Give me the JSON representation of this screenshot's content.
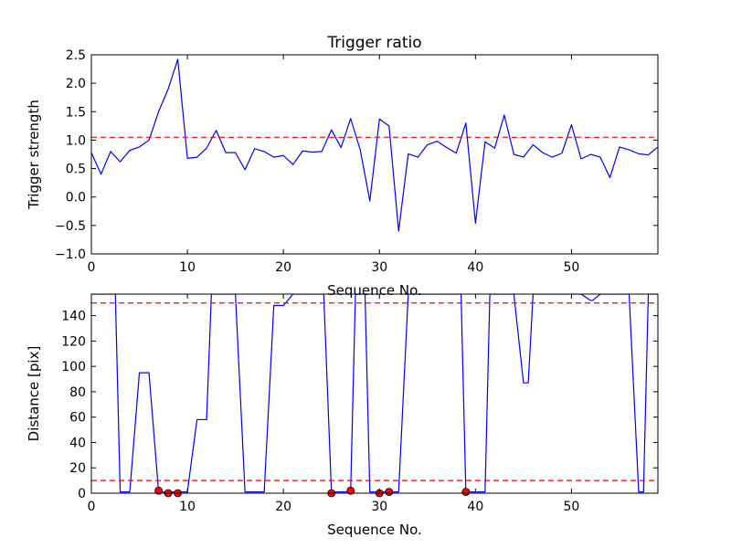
{
  "colors": {
    "series": "#0000ff",
    "threshold": "#ff0000",
    "marker_fill": "#ff0000",
    "marker_edge": "#000000",
    "axes": "#000000",
    "background": "#ffffff"
  },
  "chart_data": [
    {
      "type": "line",
      "title": "Trigger ratio",
      "xlabel": "Sequence No.",
      "ylabel": "Trigger strength",
      "xlim": [
        0,
        59
      ],
      "ylim": [
        -1.0,
        2.5
      ],
      "xticks": [
        0,
        10,
        20,
        30,
        40,
        50
      ],
      "yticks": [
        -1.0,
        -0.5,
        0.0,
        0.5,
        1.0,
        1.5,
        2.0,
        2.5
      ],
      "x_tick_labels": [
        "0",
        "10",
        "20",
        "30",
        "40",
        "50"
      ],
      "y_tick_labels": [
        "−1.0",
        "−0.5",
        "0.0",
        "0.5",
        "1.0",
        "1.5",
        "2.0",
        "2.5"
      ],
      "grid": false,
      "series": [
        {
          "values": [
            0.78,
            0.4,
            0.8,
            0.62,
            0.82,
            0.88,
            1.0,
            1.5,
            1.9,
            2.42,
            0.68,
            0.7,
            0.86,
            1.17,
            0.78,
            0.78,
            0.48,
            0.85,
            0.8,
            0.7,
            0.73,
            0.57,
            0.81,
            0.79,
            0.8,
            1.18,
            0.87,
            1.38,
            0.83,
            -0.07,
            1.37,
            1.25,
            -0.6,
            0.76,
            0.7,
            0.92,
            0.98,
            0.87,
            0.77,
            1.3,
            -0.46,
            0.97,
            0.86,
            1.44,
            0.75,
            0.7,
            0.92,
            0.78,
            0.7,
            0.77,
            1.27,
            0.67,
            0.75,
            0.7,
            0.34,
            0.88,
            0.83,
            0.76,
            0.74,
            0.88
          ]
        }
      ],
      "hlines": [
        1.05
      ]
    },
    {
      "type": "line",
      "title": "",
      "xlabel": "Sequence No.",
      "ylabel": "Distance [pix]",
      "xlim": [
        0,
        59
      ],
      "ylim": [
        0,
        157
      ],
      "xticks": [
        0,
        10,
        20,
        30,
        40,
        50
      ],
      "yticks": [
        0,
        20,
        40,
        60,
        80,
        100,
        120,
        140
      ],
      "x_tick_labels": [
        "0",
        "10",
        "20",
        "30",
        "40",
        "50"
      ],
      "y_tick_labels": [
        "0",
        "20",
        "40",
        "60",
        "80",
        "100",
        "120",
        "140"
      ],
      "grid": false,
      "series": [
        {
          "x": [
            0,
            1,
            2,
            2.5,
            3,
            4,
            5,
            6,
            7,
            8,
            9,
            10,
            11,
            12,
            12.5,
            13,
            14,
            15,
            16,
            17,
            18,
            19,
            20,
            21,
            22,
            23,
            24,
            24.2,
            25,
            26,
            27,
            27.5,
            28,
            28.5,
            29,
            30,
            31,
            32,
            33,
            34,
            35,
            36,
            37,
            38,
            38.5,
            39,
            40,
            41,
            41.5,
            42,
            43,
            43.5,
            44,
            45,
            45.5,
            46,
            47,
            48,
            49,
            50,
            51,
            52,
            52.2,
            53,
            54,
            55,
            55.5,
            56,
            57,
            57.5,
            58,
            59
          ],
          "values": [
            157,
            157,
            157,
            157,
            1,
            1,
            95,
            95,
            1,
            1,
            1,
            1,
            58,
            58,
            157,
            157,
            157,
            157,
            1,
            1,
            1,
            148,
            148,
            157,
            157,
            157,
            157,
            157,
            1,
            1,
            1,
            157,
            157,
            157,
            1,
            1,
            1,
            1,
            157,
            157,
            157,
            157,
            157,
            157,
            157,
            1,
            1,
            1,
            157,
            157,
            157,
            157,
            157,
            87,
            87,
            157,
            157,
            157,
            157,
            157,
            157,
            152,
            152,
            157,
            157,
            157,
            157,
            157,
            1,
            1,
            157,
            157
          ],
          "clip_top": true
        }
      ],
      "hlines": [
        150,
        10
      ],
      "markers": {
        "x": [
          7,
          8,
          9,
          25,
          27,
          30,
          31,
          39
        ],
        "y": [
          2,
          0,
          0,
          0,
          2,
          0,
          1,
          1
        ]
      }
    }
  ]
}
